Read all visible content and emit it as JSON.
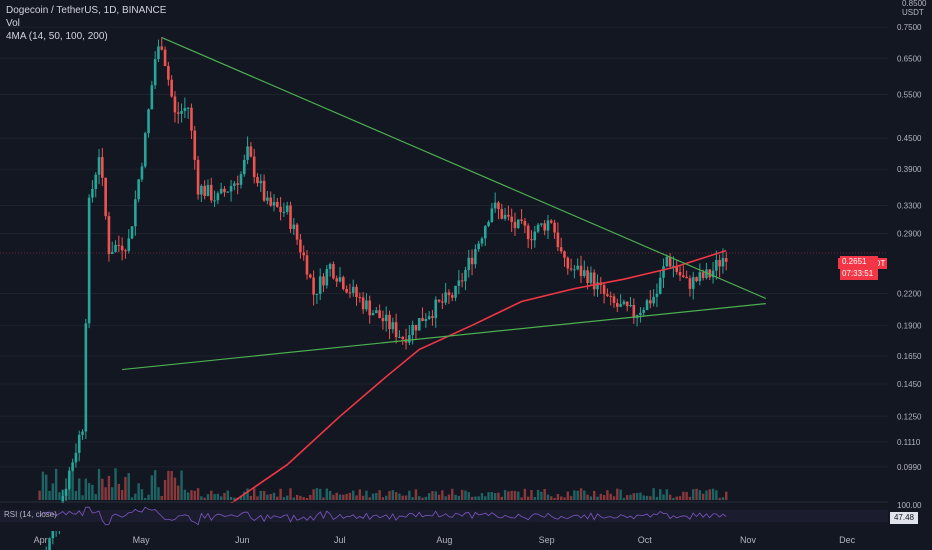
{
  "header": {
    "symbol_line": "Dogecoin / TetherUS, 1D, BINANCE",
    "vol_label": "Vol",
    "ma_label": "4MA (14, 50, 100, 200)"
  },
  "price_axis": {
    "unit": "USDT",
    "top_tick": "0.8500",
    "ticks": [
      "0.7500",
      "0.6500",
      "0.5500",
      "0.4500",
      "0.3900",
      "0.3300",
      "0.2900",
      "0.2200",
      "0.1900",
      "0.1650",
      "0.1450",
      "0.1250",
      "0.1110",
      "0.0990"
    ]
  },
  "current_price": {
    "symbol": "DOGEUSDT",
    "price": "0.2651",
    "countdown": "07:33:51"
  },
  "rsi": {
    "label": "RSI (14, close)",
    "top_tick": "100.00",
    "value": "47.48"
  },
  "time_axis": {
    "labels": [
      "Apr",
      "May",
      "Jun",
      "Jul",
      "Aug",
      "Sep",
      "Oct",
      "Nov",
      "Dec"
    ]
  },
  "colors": {
    "background": "#131722",
    "up": "#26a69a",
    "down": "#ef5350",
    "trendline": "#4caf50",
    "ma_line": "#f23645",
    "rsi_line": "#7e57c2"
  },
  "chart_data": {
    "type": "candlestick",
    "title": "Dogecoin / TetherUS, 1D, BINANCE",
    "ylabel": "USDT",
    "y_scale": "log",
    "ylim": [
      0.085,
      0.85
    ],
    "xlim": [
      "2021-03-20",
      "2021-12-14"
    ],
    "close_points": [
      [
        "2021-04-01",
        0.06
      ],
      [
        "2021-04-14",
        0.12
      ],
      [
        "2021-04-16",
        0.33
      ],
      [
        "2021-04-19",
        0.42
      ],
      [
        "2021-04-22",
        0.27
      ],
      [
        "2021-04-28",
        0.28
      ],
      [
        "2021-05-03",
        0.45
      ],
      [
        "2021-05-06",
        0.65
      ],
      [
        "2021-05-08",
        0.7
      ],
      [
        "2021-05-12",
        0.5
      ],
      [
        "2021-05-16",
        0.52
      ],
      [
        "2021-05-19",
        0.36
      ],
      [
        "2021-05-25",
        0.34
      ],
      [
        "2021-06-01",
        0.38
      ],
      [
        "2021-06-03",
        0.42
      ],
      [
        "2021-06-09",
        0.33
      ],
      [
        "2021-06-15",
        0.32
      ],
      [
        "2021-06-21",
        0.25
      ],
      [
        "2021-06-23",
        0.22
      ],
      [
        "2021-06-28",
        0.25
      ],
      [
        "2021-07-05",
        0.22
      ],
      [
        "2021-07-12",
        0.2
      ],
      [
        "2021-07-20",
        0.18
      ],
      [
        "2021-07-27",
        0.2
      ],
      [
        "2021-08-05",
        0.22
      ],
      [
        "2021-08-12",
        0.28
      ],
      [
        "2021-08-16",
        0.33
      ],
      [
        "2021-08-23",
        0.3
      ],
      [
        "2021-08-28",
        0.29
      ],
      [
        "2021-09-03",
        0.31
      ],
      [
        "2021-09-07",
        0.25
      ],
      [
        "2021-09-14",
        0.24
      ],
      [
        "2021-09-21",
        0.21
      ],
      [
        "2021-09-28",
        0.2
      ],
      [
        "2021-10-05",
        0.22
      ],
      [
        "2021-10-08",
        0.26
      ],
      [
        "2021-10-14",
        0.23
      ],
      [
        "2021-10-21",
        0.24
      ],
      [
        "2021-10-26",
        0.265
      ]
    ],
    "ma_200": [
      [
        "2021-05-27",
        0.082
      ],
      [
        "2021-06-15",
        0.1
      ],
      [
        "2021-07-01",
        0.125
      ],
      [
        "2021-07-15",
        0.15
      ],
      [
        "2021-07-25",
        0.17
      ],
      [
        "2021-08-10",
        0.19
      ],
      [
        "2021-08-25",
        0.212
      ],
      [
        "2021-09-10",
        0.225
      ],
      [
        "2021-09-25",
        0.235
      ],
      [
        "2021-10-10",
        0.248
      ],
      [
        "2021-10-26",
        0.268
      ]
    ],
    "trendlines": [
      {
        "from": [
          "2021-05-08",
          0.715
        ],
        "to": [
          "2021-11-07",
          0.215
        ]
      },
      {
        "from": [
          "2021-04-26",
          0.155
        ],
        "to": [
          "2021-11-07",
          0.21
        ]
      }
    ],
    "current_price": 0.2651
  }
}
